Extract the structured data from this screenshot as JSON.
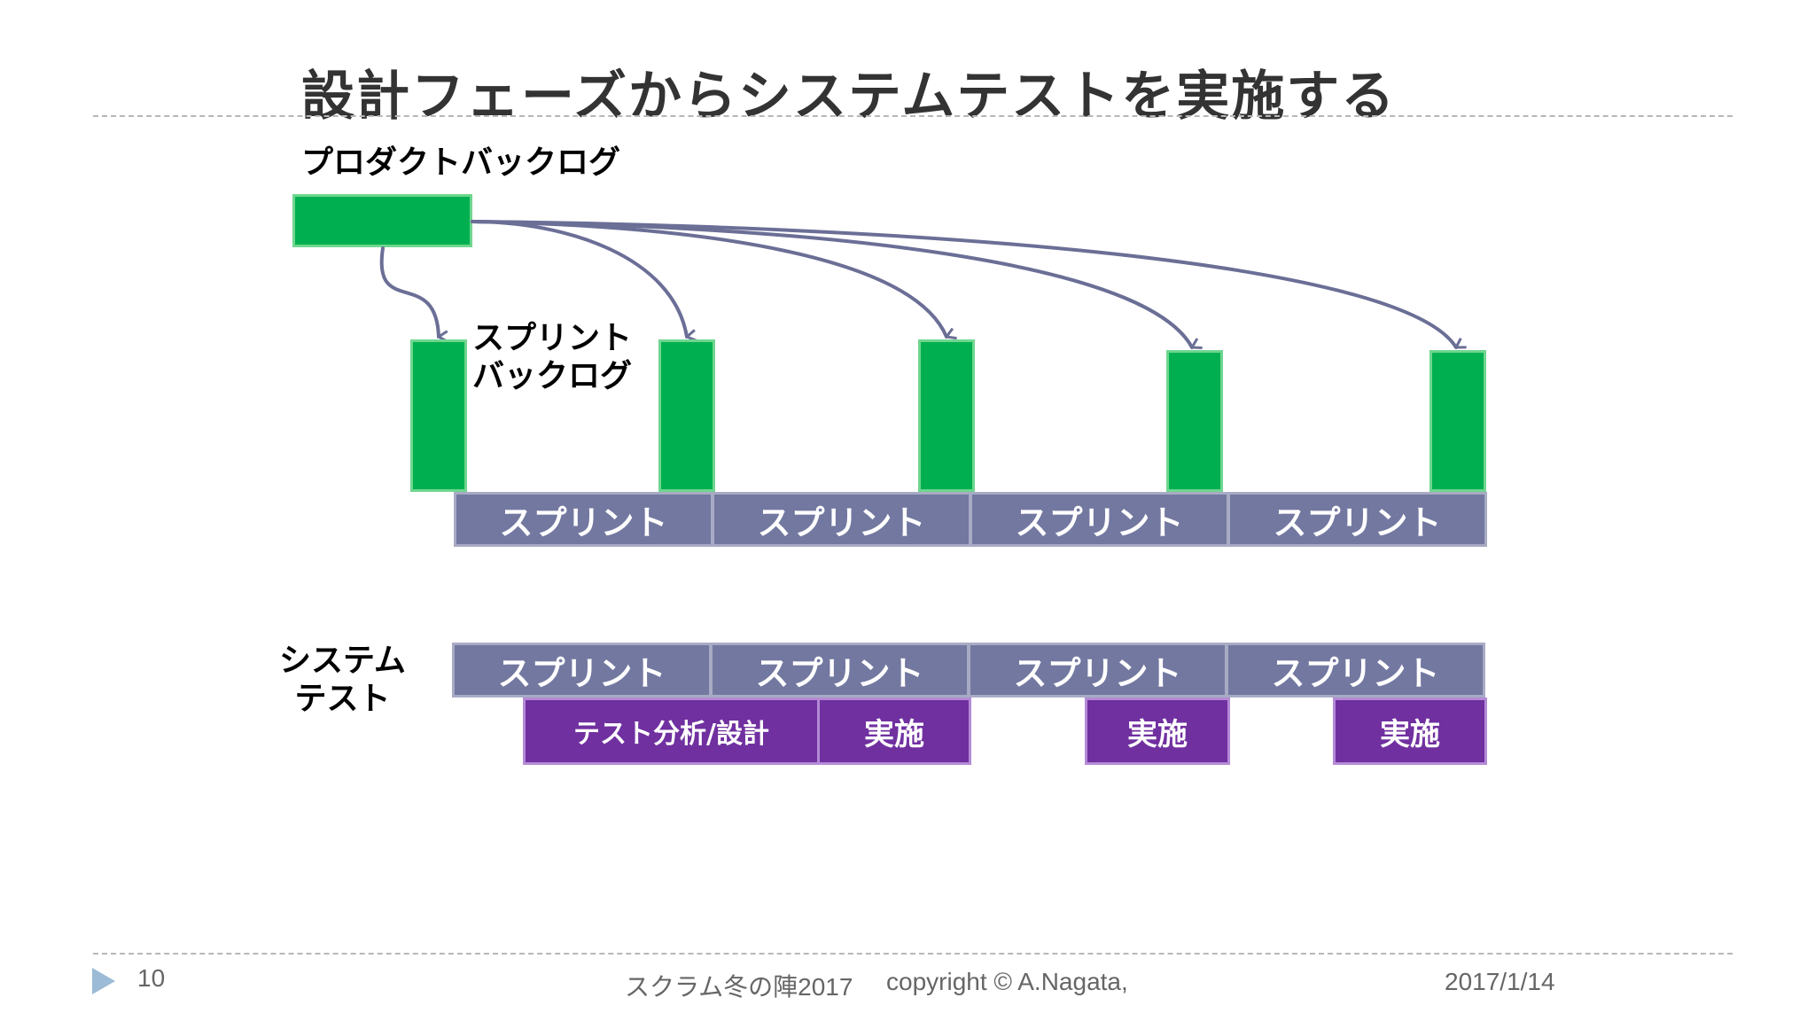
{
  "slide": {
    "title": "設計フェーズからシステムテストを実施する",
    "product_backlog_label": "プロダクトバックログ",
    "sprint_backlog_label_line1": "スプリント",
    "sprint_backlog_label_line2": "バックログ",
    "system_test_label_line1": "システム",
    "system_test_label_line2": "テスト",
    "dev_sprints": [
      "スプリント",
      "スプリント",
      "スプリント",
      "スプリント"
    ],
    "test_sprints": [
      "スプリント",
      "スプリント",
      "スプリント",
      "スプリント"
    ],
    "test_tasks": [
      "テスト分析/設計",
      "実施",
      "実施",
      "実施"
    ]
  },
  "footer": {
    "page_number": "10",
    "event": "スクラム冬の陣2017",
    "copyright": "copyright © A.Nagata,",
    "date": "2017/1/14"
  },
  "colors": {
    "backlog_green": "#00b050",
    "sprint_slate": "#7378a0",
    "task_purple": "#7030a0",
    "arrow": "#6b6f96"
  }
}
